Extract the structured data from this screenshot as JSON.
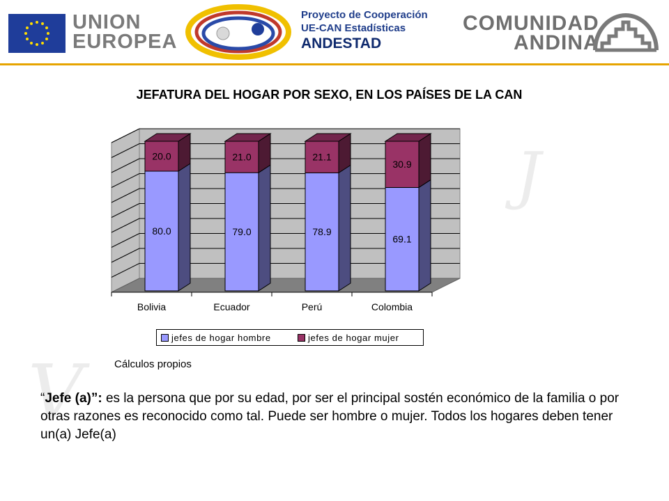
{
  "header": {
    "eu_text_line1": "UNION",
    "eu_text_line2": "EUROPEA",
    "project_line1": "Proyecto de Cooperación",
    "project_line2": "UE-CAN Estadísticas",
    "project_line3": "ANDESTAD",
    "can_text_line1": "COMUNIDAD",
    "can_text_line2": "ANDINA",
    "rule_color": "#e6a400"
  },
  "slide": {
    "title": "JEFATURA DEL HOGAR POR SEXO, EN LOS PAÍSES DE LA CAN",
    "source": "Cálculos propios",
    "definition_quote_open": "“",
    "definition_term": "Jefe (a)”:",
    "definition_text": " es la persona que por su edad, por ser el principal sostén económico de la familia o por otras razones es reconocido como tal. Puede ser hombre o mujer. Todos los hogares deben tener un(a) Jefe(a)"
  },
  "chart_data": {
    "type": "bar",
    "stacked": true,
    "percent_stacked": true,
    "three_d": true,
    "categories": [
      "Bolivia",
      "Ecuador",
      "Perú",
      "Colombia"
    ],
    "series": [
      {
        "name": "jefes de hogar  hombre",
        "values": [
          80.0,
          79.0,
          78.9,
          69.1
        ],
        "color": "#9999ff"
      },
      {
        "name": "jefes de hogar  mujer",
        "values": [
          20.0,
          21.0,
          21.1,
          30.9
        ],
        "color": "#993366"
      }
    ],
    "ylim": [
      0,
      100
    ],
    "grid": true,
    "legend_position": "bottom"
  }
}
